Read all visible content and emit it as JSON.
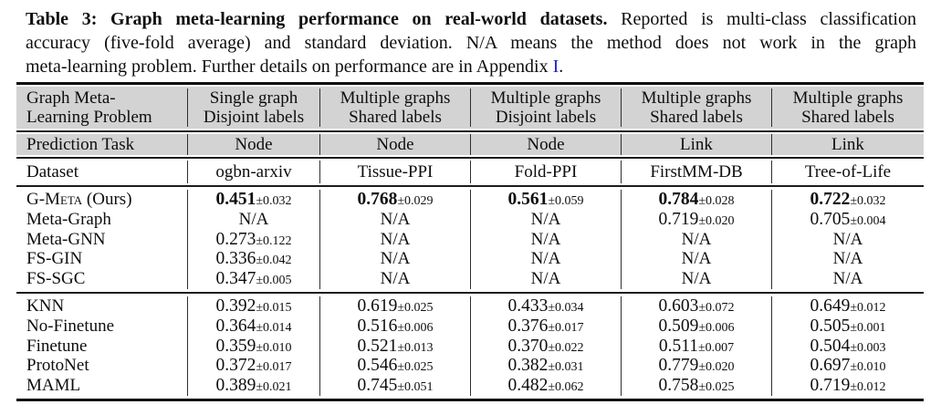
{
  "colors": {
    "link": "#2222cc",
    "header_bg": "#d3d3d3"
  },
  "caption": {
    "line1_bold": "Table 3: Graph meta-learning performance on real-world datasets.",
    "line1_rest": " Reported is multi-class classification",
    "line2": "accuracy (five-fold average) and standard deviation.  N/A means the method does not work in the graph",
    "line3_before_link": "meta-learning problem. Further details on performance are in Appendix ",
    "line3_link": "I",
    "line3_after": "."
  },
  "table": {
    "header_row1": {
      "label_line1": "Graph Meta-",
      "label_line2": "Learning Problem",
      "cols": [
        [
          "Single graph",
          "Disjoint labels"
        ],
        [
          "Multiple graphs",
          "Shared labels"
        ],
        [
          "Multiple graphs",
          "Disjoint labels"
        ],
        [
          "Multiple graphs",
          "Shared labels"
        ],
        [
          "Multiple graphs",
          "Shared labels"
        ]
      ]
    },
    "prediction_row": {
      "label": "Prediction Task",
      "cols": [
        "Node",
        "Node",
        "Node",
        "Link",
        "Link"
      ]
    },
    "dataset_row": {
      "label": "Dataset",
      "cols": [
        "ogbn-arxiv",
        "Tissue-PPI",
        "Fold-PPI",
        "FirstMM-DB",
        "Tree-of-Life"
      ]
    },
    "groups": [
      {
        "rows": [
          {
            "method": "G-Meta",
            "method_suffix": " (Ours)",
            "smallcaps": true,
            "values": [
              {
                "v": "0.451",
                "pm": "±0.032",
                "bold": true
              },
              {
                "v": "0.768",
                "pm": "±0.029",
                "bold": true
              },
              {
                "v": "0.561",
                "pm": "±0.059",
                "bold": true
              },
              {
                "v": "0.784",
                "pm": "±0.028",
                "bold": true
              },
              {
                "v": "0.722",
                "pm": "±0.032",
                "bold": true
              }
            ]
          },
          {
            "method": "Meta-Graph",
            "values": [
              "N/A",
              "N/A",
              "N/A",
              {
                "v": "0.719",
                "pm": "±0.020"
              },
              {
                "v": "0.705",
                "pm": "±0.004"
              }
            ]
          },
          {
            "method": "Meta-GNN",
            "values": [
              {
                "v": "0.273",
                "pm": "±0.122"
              },
              "N/A",
              "N/A",
              "N/A",
              "N/A"
            ]
          },
          {
            "method": "FS-GIN",
            "values": [
              {
                "v": "0.336",
                "pm": "±0.042"
              },
              "N/A",
              "N/A",
              "N/A",
              "N/A"
            ]
          },
          {
            "method": "FS-SGC",
            "values": [
              {
                "v": "0.347",
                "pm": "±0.005"
              },
              "N/A",
              "N/A",
              "N/A",
              "N/A"
            ]
          }
        ]
      },
      {
        "rows": [
          {
            "method": "KNN",
            "values": [
              {
                "v": "0.392",
                "pm": "±0.015"
              },
              {
                "v": "0.619",
                "pm": "±0.025"
              },
              {
                "v": "0.433",
                "pm": "±0.034"
              },
              {
                "v": "0.603",
                "pm": "±0.072"
              },
              {
                "v": "0.649",
                "pm": "±0.012"
              }
            ]
          },
          {
            "method": "No-Finetune",
            "values": [
              {
                "v": "0.364",
                "pm": "±0.014"
              },
              {
                "v": "0.516",
                "pm": "±0.006"
              },
              {
                "v": "0.376",
                "pm": "±0.017"
              },
              {
                "v": "0.509",
                "pm": "±0.006"
              },
              {
                "v": "0.505",
                "pm": "±0.001"
              }
            ]
          },
          {
            "method": "Finetune",
            "values": [
              {
                "v": "0.359",
                "pm": "±0.010"
              },
              {
                "v": "0.521",
                "pm": "±0.013"
              },
              {
                "v": "0.370",
                "pm": "±0.022"
              },
              {
                "v": "0.511",
                "pm": "±0.007"
              },
              {
                "v": "0.504",
                "pm": "±0.003"
              }
            ]
          },
          {
            "method": "ProtoNet",
            "values": [
              {
                "v": "0.372",
                "pm": "±0.017"
              },
              {
                "v": "0.546",
                "pm": "±0.025"
              },
              {
                "v": "0.382",
                "pm": "±0.031"
              },
              {
                "v": "0.779",
                "pm": "±0.020"
              },
              {
                "v": "0.697",
                "pm": "±0.010"
              }
            ]
          },
          {
            "method": "MAML",
            "values": [
              {
                "v": "0.389",
                "pm": "±0.021"
              },
              {
                "v": "0.745",
                "pm": "±0.051"
              },
              {
                "v": "0.482",
                "pm": "±0.062"
              },
              {
                "v": "0.758",
                "pm": "±0.025"
              },
              {
                "v": "0.719",
                "pm": "±0.012"
              }
            ]
          }
        ]
      }
    ]
  }
}
